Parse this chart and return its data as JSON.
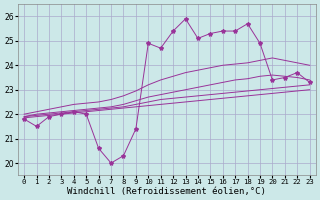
{
  "xlabel": "Windchill (Refroidissement éolien,°C)",
  "background_color": "#cce8e8",
  "grid_color": "#aaaacc",
  "line_color": "#993399",
  "x_hours": [
    0,
    1,
    2,
    3,
    4,
    5,
    6,
    7,
    8,
    9,
    10,
    11,
    12,
    13,
    14,
    15,
    16,
    17,
    18,
    19,
    20,
    21,
    22,
    23
  ],
  "series": {
    "main": [
      21.8,
      21.5,
      21.9,
      22.0,
      22.1,
      22.0,
      20.6,
      20.0,
      20.3,
      21.4,
      24.9,
      24.7,
      25.4,
      25.9,
      25.1,
      25.3,
      25.4,
      25.4,
      25.7,
      24.9,
      23.4,
      23.5,
      23.7,
      23.3
    ],
    "line1": [
      21.85,
      21.9,
      21.95,
      22.0,
      22.05,
      22.1,
      22.15,
      22.2,
      22.25,
      22.3,
      22.35,
      22.4,
      22.45,
      22.5,
      22.55,
      22.6,
      22.65,
      22.7,
      22.75,
      22.8,
      22.85,
      22.9,
      22.95,
      23.0
    ],
    "line2": [
      21.9,
      21.95,
      22.0,
      22.05,
      22.1,
      22.15,
      22.2,
      22.25,
      22.3,
      22.4,
      22.5,
      22.6,
      22.65,
      22.7,
      22.75,
      22.8,
      22.85,
      22.9,
      22.95,
      23.0,
      23.05,
      23.1,
      23.15,
      23.2
    ],
    "line3": [
      21.9,
      22.0,
      22.05,
      22.1,
      22.15,
      22.2,
      22.25,
      22.3,
      22.4,
      22.55,
      22.7,
      22.8,
      22.9,
      23.0,
      23.1,
      23.2,
      23.3,
      23.4,
      23.45,
      23.55,
      23.6,
      23.55,
      23.5,
      23.4
    ],
    "line4": [
      22.0,
      22.1,
      22.2,
      22.3,
      22.4,
      22.45,
      22.5,
      22.6,
      22.75,
      22.95,
      23.2,
      23.4,
      23.55,
      23.7,
      23.8,
      23.9,
      24.0,
      24.05,
      24.1,
      24.2,
      24.3,
      24.2,
      24.1,
      24.0
    ]
  },
  "ylim": [
    19.5,
    26.5
  ],
  "yticks": [
    20,
    21,
    22,
    23,
    24,
    25,
    26
  ],
  "xlim": [
    -0.5,
    23.5
  ],
  "xtick_fontsize": 5.2,
  "ytick_fontsize": 5.5,
  "xlabel_fontsize": 6.5
}
